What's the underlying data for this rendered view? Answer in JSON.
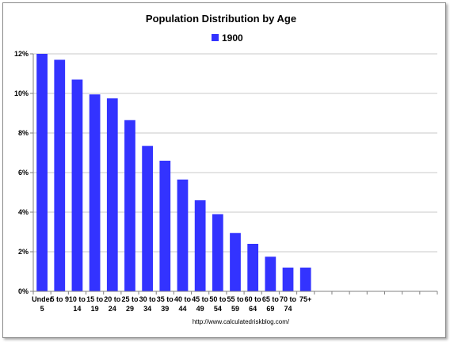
{
  "chart_data": {
    "type": "bar",
    "title": "Population Distribution by Age",
    "legend_position": "top-center",
    "grid": true,
    "y_tick_suffix": "%",
    "ylim": [
      0,
      12
    ],
    "y_ticks": [
      "0%",
      "2%",
      "4%",
      "6%",
      "8%",
      "10%",
      "12%"
    ],
    "categories": [
      [
        "Under",
        "5"
      ],
      [
        "5 to 9"
      ],
      [
        "10 to",
        "14"
      ],
      [
        "15 to",
        "19"
      ],
      [
        "20 to",
        "24"
      ],
      [
        "25 to",
        "29"
      ],
      [
        "30 to",
        "34"
      ],
      [
        "35 to",
        "39"
      ],
      [
        "40 to",
        "44"
      ],
      [
        "45 to",
        "49"
      ],
      [
        "50 to",
        "54"
      ],
      [
        "55 to",
        "59"
      ],
      [
        "60 to",
        "64"
      ],
      [
        "65 to",
        "69"
      ],
      [
        "70 to",
        "74"
      ],
      [
        "75+"
      ],
      [
        ""
      ],
      [
        ""
      ],
      [
        ""
      ],
      [
        ""
      ],
      [
        ""
      ],
      [
        ""
      ],
      [
        ""
      ]
    ],
    "series": [
      {
        "name": "1900",
        "color": "#3333ff",
        "values": [
          12.0,
          11.7,
          10.7,
          9.95,
          9.75,
          8.65,
          7.35,
          6.6,
          5.65,
          4.6,
          3.9,
          2.95,
          2.4,
          1.75,
          1.2,
          1.2,
          null,
          null,
          null,
          null,
          null,
          null,
          null
        ]
      }
    ],
    "source": "http://www.calculatedriskblog.com/"
  },
  "colors": {
    "bar": "#3333ff",
    "gridline": "#c8c8c8",
    "axis": "#808080"
  }
}
